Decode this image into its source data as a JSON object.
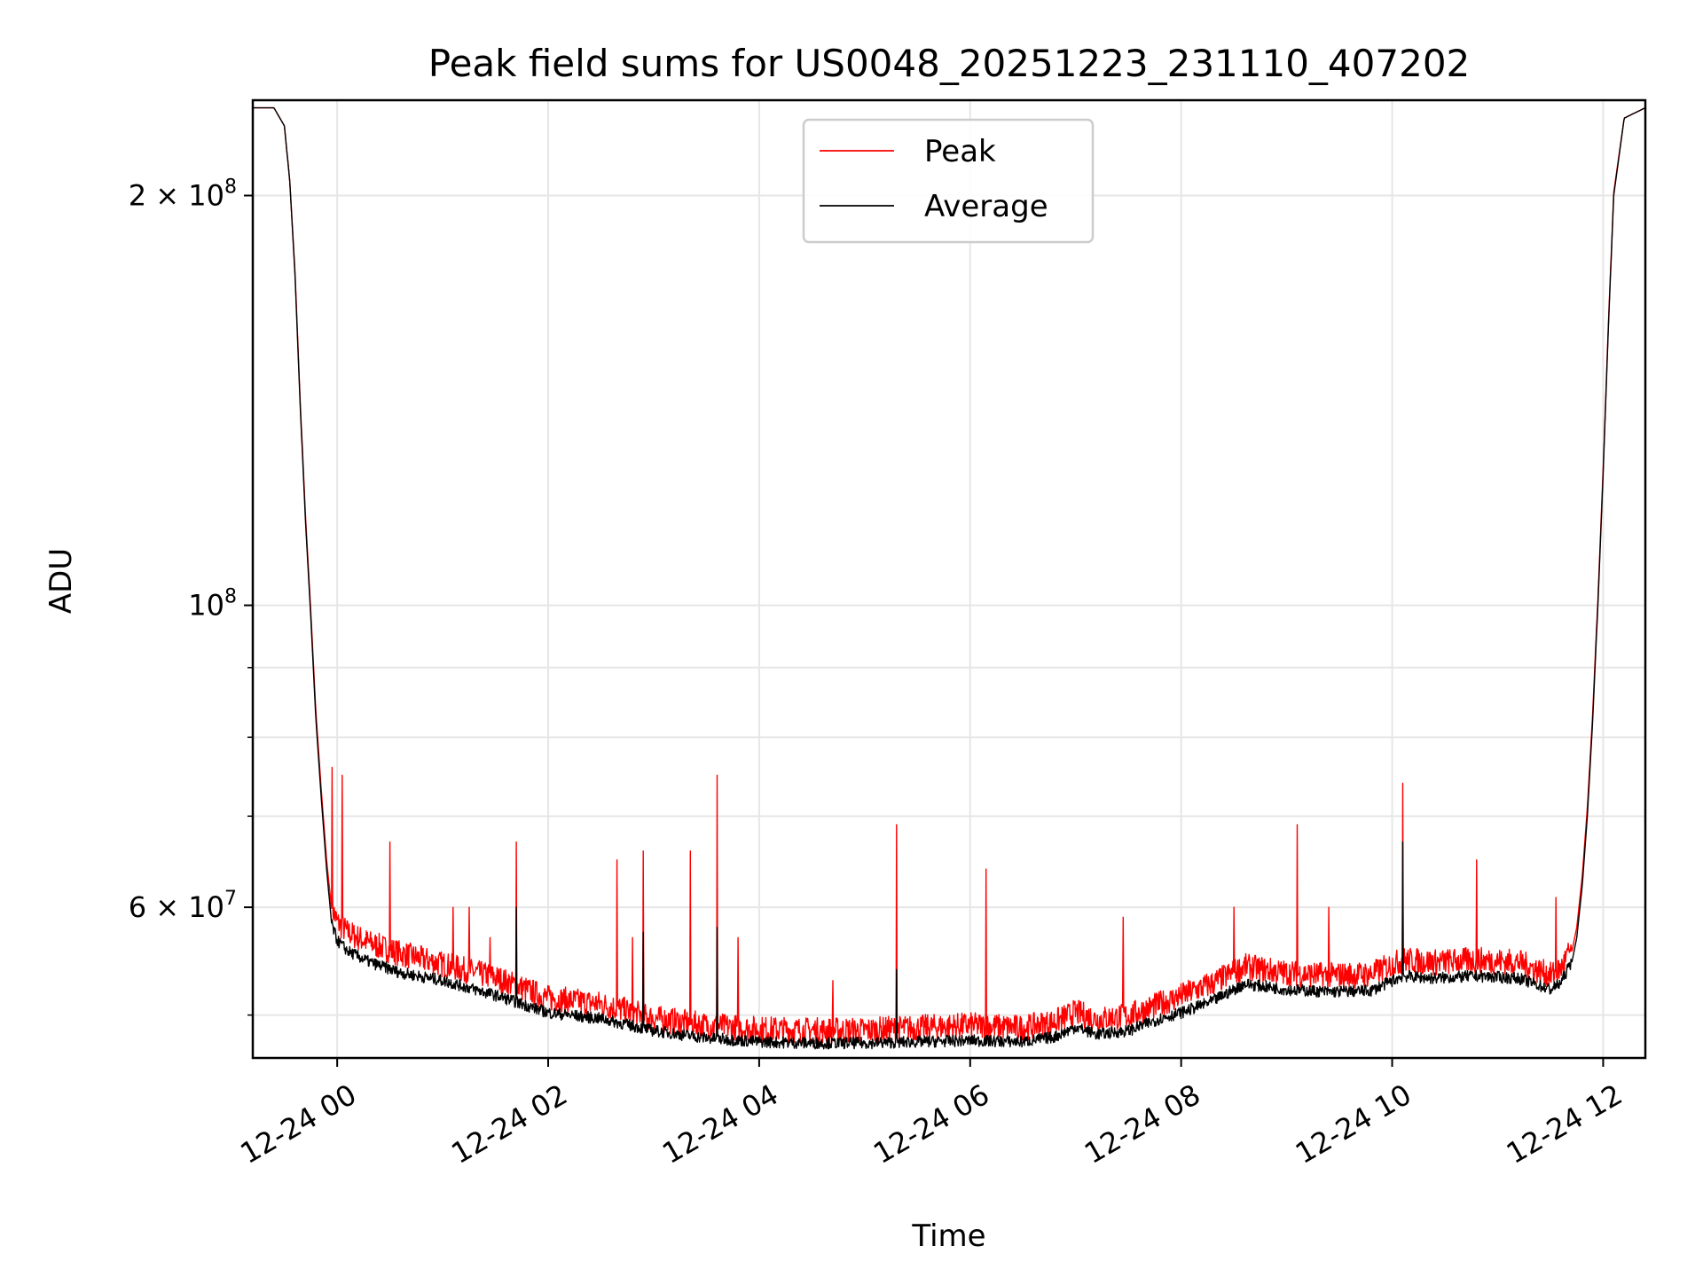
{
  "chart_data": {
    "type": "line",
    "title": "Peak field sums for US0048_20251223_231110_407202",
    "xlabel": "Time",
    "ylabel": "ADU",
    "yscale": "log",
    "xlim": [
      -0.8,
      12.4
    ],
    "ylim": [
      46500000,
      235000000
    ],
    "x_unit": "hours since 12-24 00:00",
    "x_ticks": [
      {
        "value": 0,
        "label": "12-24 00"
      },
      {
        "value": 2,
        "label": "12-24 02"
      },
      {
        "value": 4,
        "label": "12-24 04"
      },
      {
        "value": 6,
        "label": "12-24 06"
      },
      {
        "value": 8,
        "label": "12-24 08"
      },
      {
        "value": 10,
        "label": "12-24 10"
      },
      {
        "value": 12,
        "label": "12-24 12"
      }
    ],
    "y_major_ticks": [
      {
        "value": 100000000,
        "mantissa": "",
        "exp": "8"
      },
      {
        "value": 200000000,
        "mantissa": "2",
        "exp": "8"
      },
      {
        "value": 60000000,
        "mantissa": "6",
        "exp": "7"
      }
    ],
    "y_minor_ticks": [
      50000000,
      70000000,
      80000000,
      90000000
    ],
    "grid": true,
    "legend_position": "upper-center",
    "legend": [
      {
        "name": "Peak",
        "color": "#ff0000"
      },
      {
        "name": "Average",
        "color": "#000000"
      }
    ],
    "series": [
      {
        "name": "Average",
        "color": "#000000",
        "x": [
          -0.8,
          -0.6,
          -0.5,
          -0.45,
          -0.4,
          -0.35,
          -0.3,
          -0.25,
          -0.2,
          -0.15,
          -0.1,
          -0.05,
          0.0,
          0.1,
          0.3,
          0.6,
          1.0,
          1.5,
          2.0,
          2.5,
          3.0,
          3.5,
          4.0,
          4.5,
          5.0,
          5.5,
          6.0,
          6.5,
          6.8,
          7.0,
          7.2,
          7.5,
          7.8,
          8.0,
          8.3,
          8.6,
          9.0,
          9.4,
          9.8,
          10.1,
          10.4,
          10.8,
          11.2,
          11.5,
          11.6,
          11.7,
          11.75,
          11.8,
          11.85,
          11.9,
          11.95,
          12.0,
          12.05,
          12.1,
          12.2,
          12.4
        ],
        "y": [
          232000000,
          232000000,
          225000000,
          205000000,
          175000000,
          140000000,
          115000000,
          98000000,
          82000000,
          72000000,
          64000000,
          58000000,
          56500000,
          55500000,
          54500000,
          53500000,
          52800000,
          51500000,
          50000000,
          49500000,
          48500000,
          47900000,
          47600000,
          47500000,
          47500000,
          47600000,
          47700000,
          47600000,
          48000000,
          48800000,
          48200000,
          48500000,
          49500000,
          50000000,
          51000000,
          52500000,
          52000000,
          51800000,
          51900000,
          53200000,
          53000000,
          53200000,
          53000000,
          52000000,
          52600000,
          54500000,
          57000000,
          62000000,
          70000000,
          82000000,
          100000000,
          125000000,
          160000000,
          200000000,
          228000000,
          232000000
        ]
      },
      {
        "name": "Peak",
        "color": "#ff0000",
        "x": [
          -0.8,
          -0.6,
          -0.5,
          -0.45,
          -0.4,
          -0.35,
          -0.3,
          -0.25,
          -0.2,
          -0.15,
          -0.1,
          -0.05,
          0.0,
          0.1,
          0.3,
          0.6,
          1.0,
          1.5,
          2.0,
          2.5,
          3.0,
          3.5,
          4.0,
          4.5,
          5.0,
          5.5,
          6.0,
          6.5,
          6.8,
          7.0,
          7.2,
          7.5,
          7.8,
          8.0,
          8.3,
          8.6,
          9.0,
          9.4,
          9.8,
          10.1,
          10.4,
          10.8,
          11.2,
          11.5,
          11.6,
          11.7,
          11.75,
          11.8,
          11.85,
          11.9,
          11.95,
          12.0,
          12.05,
          12.1,
          12.2,
          12.4
        ],
        "y": [
          232000000,
          232000000,
          225000000,
          205000000,
          176000000,
          141000000,
          116000000,
          99000000,
          83000000,
          73000000,
          65000000,
          59500000,
          58000000,
          57000000,
          56000000,
          55000000,
          54000000,
          52800000,
          51000000,
          50500000,
          49300000,
          48700000,
          48400000,
          48300000,
          48300000,
          48500000,
          48700000,
          48500000,
          49000000,
          49800000,
          49200000,
          49500000,
          50500000,
          51200000,
          52300000,
          53800000,
          53200000,
          53000000,
          53100000,
          54400000,
          54200000,
          54400000,
          54200000,
          53000000,
          53600000,
          55500000,
          58000000,
          63000000,
          71000000,
          83000000,
          101000000,
          126000000,
          161000000,
          201000000,
          228000000,
          232000000
        ]
      }
    ],
    "peak_spikes": [
      {
        "x": -0.05,
        "y": 76000000
      },
      {
        "x": 0.05,
        "y": 75000000
      },
      {
        "x": 0.5,
        "y": 67000000
      },
      {
        "x": 1.1,
        "y": 60000000
      },
      {
        "x": 1.25,
        "y": 60000000
      },
      {
        "x": 1.45,
        "y": 57000000
      },
      {
        "x": 1.7,
        "y": 67000000
      },
      {
        "x": 2.65,
        "y": 65000000
      },
      {
        "x": 2.8,
        "y": 57000000
      },
      {
        "x": 2.9,
        "y": 66000000
      },
      {
        "x": 3.35,
        "y": 66000000
      },
      {
        "x": 3.6,
        "y": 75000000
      },
      {
        "x": 3.8,
        "y": 57000000
      },
      {
        "x": 4.7,
        "y": 53000000
      },
      {
        "x": 5.3,
        "y": 69000000
      },
      {
        "x": 6.15,
        "y": 64000000
      },
      {
        "x": 7.45,
        "y": 59000000
      },
      {
        "x": 8.5,
        "y": 60000000
      },
      {
        "x": 9.1,
        "y": 69000000
      },
      {
        "x": 9.4,
        "y": 60000000
      },
      {
        "x": 10.1,
        "y": 74000000
      },
      {
        "x": 10.8,
        "y": 65000000
      },
      {
        "x": 11.55,
        "y": 61000000
      }
    ],
    "average_spikes": [
      {
        "x": 1.7,
        "y": 60000000
      },
      {
        "x": 2.9,
        "y": 57500000
      },
      {
        "x": 3.6,
        "y": 58000000
      },
      {
        "x": 10.1,
        "y": 67000000
      },
      {
        "x": 5.3,
        "y": 54000000
      }
    ]
  }
}
